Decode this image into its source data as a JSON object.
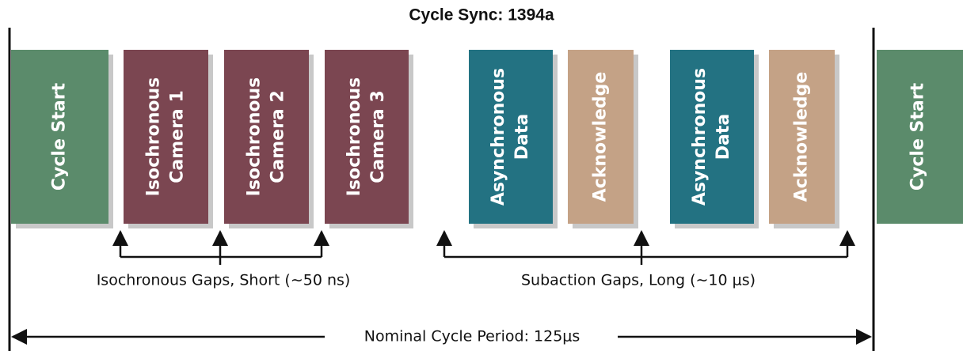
{
  "title": "Cycle Sync: 1394a",
  "blocks": [
    {
      "lines": [
        "Cycle Start"
      ]
    },
    {
      "lines": [
        "Isochronous",
        "Camera 1"
      ]
    },
    {
      "lines": [
        "Isochronous",
        "Camera 2"
      ]
    },
    {
      "lines": [
        "Isochronous",
        "Camera 3"
      ]
    },
    {
      "lines": [
        "Asynchronous",
        "Data"
      ]
    },
    {
      "lines": [
        "Acknowledge"
      ]
    },
    {
      "lines": [
        "Asynchronous",
        "Data"
      ]
    },
    {
      "lines": [
        "Acknowledge"
      ]
    },
    {
      "lines": [
        "Cycle Start"
      ]
    }
  ],
  "gaps": [
    "Isochronous Gaps, Short (∼50 ns)",
    "Subaction Gaps, Long (∼10 μs)"
  ],
  "period": "Nominal Cycle Period: 125μs"
}
